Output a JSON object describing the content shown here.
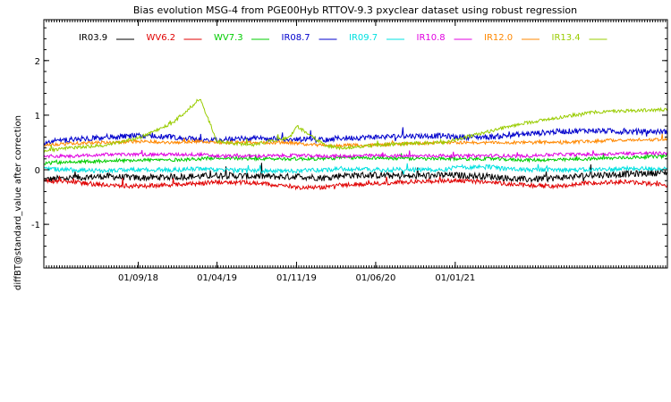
{
  "chart_data": {
    "type": "line",
    "title": "Bias evolution MSG-4 from PGE00Hyb RTTOV-9.3 pxyclear dataset using robust regression",
    "xlabel": "",
    "ylabel": "diffBT@standard_value after correction",
    "ylim": [
      -1.8,
      2.75
    ],
    "xlim": [
      "2017-12-21",
      "2022-07-26"
    ],
    "yticks": [
      -1,
      0,
      1,
      2
    ],
    "xticks": [
      {
        "date": "2018-09-01",
        "label": "01/09/18"
      },
      {
        "date": "2019-04-01",
        "label": "01/04/19"
      },
      {
        "date": "2019-11-01",
        "label": "01/11/19"
      },
      {
        "date": "2020-06-01",
        "label": "01/06/20"
      },
      {
        "date": "2021-01-01",
        "label": "01/01/21"
      }
    ],
    "grid": false,
    "legend_position": "top",
    "x": [
      "2017-12-21",
      "2018-03-01",
      "2018-06-01",
      "2018-09-01",
      "2018-12-01",
      "2019-02-15",
      "2019-04-01",
      "2019-07-01",
      "2019-10-15",
      "2019-11-01",
      "2020-01-15",
      "2020-03-01",
      "2020-06-01",
      "2020-09-01",
      "2020-12-01",
      "2021-01-01",
      "2021-04-01",
      "2021-07-01",
      "2021-10-01",
      "2022-01-01",
      "2022-04-01",
      "2022-07-26"
    ],
    "series": [
      {
        "name": "IR03.9",
        "color": "#000000",
        "noise": 0.06,
        "values": [
          -0.18,
          -0.15,
          -0.12,
          -0.15,
          -0.13,
          -0.12,
          -0.1,
          -0.12,
          -0.13,
          -0.12,
          -0.15,
          -0.1,
          -0.1,
          -0.12,
          -0.1,
          -0.1,
          -0.12,
          -0.18,
          -0.15,
          -0.1,
          -0.08,
          -0.05
        ]
      },
      {
        "name": "WV6.2",
        "color": "#e00000",
        "noise": 0.04,
        "values": [
          -0.2,
          -0.22,
          -0.28,
          -0.3,
          -0.28,
          -0.25,
          -0.22,
          -0.24,
          -0.3,
          -0.32,
          -0.32,
          -0.28,
          -0.25,
          -0.22,
          -0.2,
          -0.2,
          -0.22,
          -0.28,
          -0.3,
          -0.24,
          -0.22,
          -0.28
        ]
      },
      {
        "name": "WV7.3",
        "color": "#00cc00",
        "noise": 0.03,
        "values": [
          0.12,
          0.14,
          0.16,
          0.18,
          0.18,
          0.2,
          0.22,
          0.2,
          0.2,
          0.2,
          0.2,
          0.22,
          0.22,
          0.2,
          0.2,
          0.2,
          0.2,
          0.18,
          0.18,
          0.2,
          0.22,
          0.25
        ]
      },
      {
        "name": "IR08.7",
        "color": "#0000cc",
        "noise": 0.05,
        "values": [
          0.5,
          0.55,
          0.6,
          0.62,
          0.6,
          0.55,
          0.55,
          0.58,
          0.55,
          0.55,
          0.55,
          0.58,
          0.6,
          0.62,
          0.62,
          0.6,
          0.6,
          0.65,
          0.7,
          0.72,
          0.7,
          0.7
        ]
      },
      {
        "name": "IR09.7",
        "color": "#00e0e0",
        "noise": 0.04,
        "values": [
          0.02,
          0.0,
          -0.02,
          0.0,
          0.0,
          0.02,
          0.0,
          -0.02,
          -0.02,
          -0.02,
          0.0,
          0.02,
          0.0,
          0.0,
          0.0,
          0.05,
          0.05,
          0.0,
          0.0,
          0.0,
          0.02,
          0.02
        ]
      },
      {
        "name": "IR10.8",
        "color": "#e000e0",
        "noise": 0.03,
        "values": [
          0.25,
          0.25,
          0.28,
          0.28,
          0.28,
          0.28,
          0.25,
          0.25,
          0.26,
          0.26,
          0.25,
          0.25,
          0.26,
          0.25,
          0.26,
          0.25,
          0.26,
          0.25,
          0.28,
          0.28,
          0.3,
          0.3
        ]
      },
      {
        "name": "IR12.0",
        "color": "#ff8800",
        "noise": 0.03,
        "values": [
          0.45,
          0.48,
          0.5,
          0.52,
          0.5,
          0.52,
          0.5,
          0.5,
          0.5,
          0.48,
          0.45,
          0.45,
          0.45,
          0.48,
          0.5,
          0.5,
          0.5,
          0.5,
          0.5,
          0.52,
          0.55,
          0.55
        ]
      },
      {
        "name": "IR13.4",
        "color": "#99cc00",
        "noise": 0.03,
        "values": [
          0.35,
          0.4,
          0.45,
          0.58,
          0.85,
          1.3,
          0.52,
          0.45,
          0.6,
          0.8,
          0.45,
          0.4,
          0.45,
          0.48,
          0.5,
          0.55,
          0.7,
          0.85,
          0.95,
          1.05,
          1.08,
          1.1
        ]
      }
    ]
  }
}
